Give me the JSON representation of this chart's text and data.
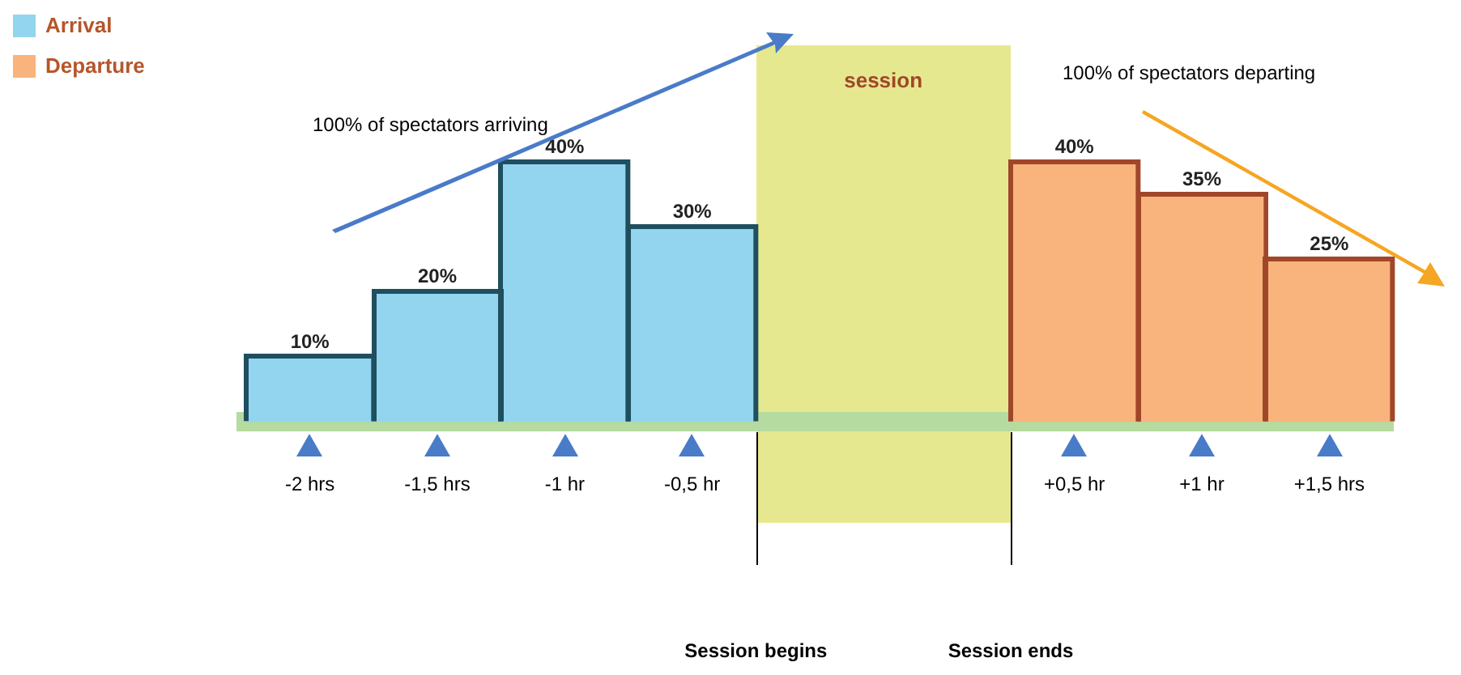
{
  "chart_data": {
    "type": "bar",
    "categories": [
      "-2 hrs",
      "-1,5 hrs",
      "-1 hr",
      "-0,5 hr",
      null,
      null,
      "+0,5 hr",
      "+1 hr",
      "+1,5 hrs"
    ],
    "series": [
      {
        "name": "Arrival",
        "color": "#93d5ee",
        "values": [
          10,
          20,
          40,
          30,
          null,
          null,
          null,
          null,
          null
        ],
        "value_labels": [
          "10%",
          "20%",
          "40%",
          "30%",
          null,
          null,
          null,
          null,
          null
        ]
      },
      {
        "name": "Departure",
        "color": "#f8b47c",
        "values": [
          null,
          null,
          null,
          null,
          null,
          null,
          40,
          35,
          25
        ],
        "value_labels": [
          null,
          null,
          null,
          null,
          null,
          null,
          "40%",
          "35%",
          "25%"
        ]
      }
    ],
    "annotations": [
      "100% of spectators  arriving",
      "100% of spectators  departing",
      "session",
      "Session begins",
      "Session ends"
    ],
    "tick_labels": "x",
    "legend": "top left",
    "grid": false
  }
}
